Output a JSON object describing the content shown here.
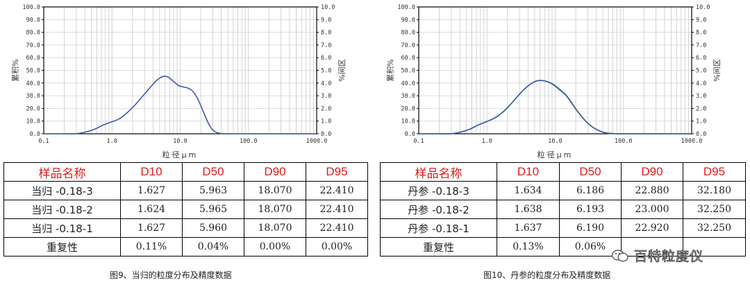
{
  "chart_data": [
    {
      "type": "line",
      "x_scale": "log",
      "xlim": [
        0.1,
        1000
      ],
      "ylim_left": [
        0,
        100
      ],
      "ylim_right": [
        0,
        10
      ],
      "grid": true,
      "xlabel": "粒径μm",
      "ylabel": "累积%",
      "ylabel_right": "%间区",
      "x_ticks": [
        "0.1",
        "1.0",
        "10.0",
        "100.0",
        "1000.0"
      ],
      "y_ticks_left": [
        "0.0",
        "10.0",
        "20.0",
        "30.0",
        "40.0",
        "50.0",
        "60.0",
        "70.0",
        "80.0",
        "90.0",
        "100.0"
      ],
      "y_ticks_right": [
        "0.0",
        "1.0",
        "2.0",
        "3.0",
        "4.0",
        "5.0",
        "6.0",
        "7.0",
        "8.0",
        "9.0",
        "10.0"
      ],
      "series": [
        {
          "color": "#3c5aa8",
          "x": [
            0.1,
            0.2,
            0.3,
            0.4,
            0.55,
            0.75,
            1.0,
            1.3,
            1.7,
            2.2,
            2.8,
            3.5,
            4.3,
            5.2,
            6.0,
            6.8,
            7.5,
            8.5,
            9.5,
            11,
            13,
            15,
            17,
            19,
            22,
            26,
            30,
            35,
            40,
            45,
            60,
            100,
            1000
          ],
          "y": [
            0,
            0,
            0.1,
            1.3,
            3.5,
            7,
            9.5,
            12,
            17,
            23,
            29.5,
            35.5,
            41,
            44.5,
            45.3,
            44.5,
            42.5,
            40,
            38,
            37,
            36,
            34,
            30,
            25,
            17,
            8,
            3,
            0.8,
            0.2,
            0,
            0,
            0,
            0
          ]
        }
      ]
    },
    {
      "type": "line",
      "x_scale": "log",
      "xlim": [
        0.1,
        1000
      ],
      "ylim_left": [
        0,
        100
      ],
      "ylim_right": [
        0,
        10
      ],
      "grid": true,
      "xlabel": "粒径μm",
      "ylabel": "累积%",
      "ylabel_right": "%间区",
      "x_ticks": [
        "0.1",
        "1.0",
        "10.0",
        "100.0",
        "1000.0"
      ],
      "y_ticks_left": [
        "0.0",
        "10.0",
        "20.0",
        "30.0",
        "40.0",
        "50.0",
        "60.0",
        "70.0",
        "80.0",
        "90.0",
        "100.0"
      ],
      "y_ticks_right": [
        "0.0",
        "1.0",
        "2.0",
        "3.0",
        "4.0",
        "5.0",
        "6.0",
        "7.0",
        "8.0",
        "9.0",
        "10.0"
      ],
      "series": [
        {
          "color": "#3c5aa8",
          "x": [
            0.1,
            0.2,
            0.3,
            0.4,
            0.55,
            0.75,
            1.0,
            1.3,
            1.7,
            2.2,
            2.8,
            3.5,
            4.3,
            5.2,
            6.2,
            7.2,
            8.5,
            10,
            12,
            14.5,
            17,
            20,
            24,
            28,
            33,
            40,
            50,
            60,
            80,
            100,
            1000
          ],
          "y": [
            0,
            0,
            0.1,
            1.2,
            3.5,
            7,
            9.8,
            12.5,
            17,
            23,
            29.5,
            35,
            39,
            41.5,
            42,
            41.5,
            40,
            37.5,
            34,
            30,
            25,
            19.5,
            14,
            10,
            6.5,
            3.5,
            1.3,
            0.5,
            0,
            0,
            0
          ]
        },
        {
          "color": "#3aa04a",
          "x": [
            0.1,
            0.2,
            0.3,
            0.4,
            0.55,
            0.75,
            1.0,
            1.3,
            1.7,
            2.2,
            2.8,
            3.5,
            4.3,
            5.2,
            6.2,
            7.2,
            8.5,
            10,
            12,
            14.5,
            17,
            20,
            24,
            28,
            33,
            40,
            50,
            60,
            80,
            100,
            1000
          ],
          "y": [
            0,
            0,
            0.1,
            1.2,
            3.4,
            7,
            9.7,
            12.4,
            17,
            23,
            29.4,
            35,
            39,
            41.4,
            42,
            41.6,
            40.3,
            38,
            34.5,
            30.4,
            25.4,
            19.8,
            14.2,
            10,
            6.4,
            3.4,
            1.2,
            0.4,
            0,
            0,
            0
          ]
        }
      ]
    }
  ],
  "tables": [
    {
      "headers": [
        "样品名称",
        "D10",
        "D50",
        "D90",
        "D95"
      ],
      "rows": [
        [
          "当归 -0.18-3",
          "1.627",
          "5.963",
          "18.070",
          "22.410"
        ],
        [
          "当归 -0.18-2",
          "1.624",
          "5.965",
          "18.070",
          "22.410"
        ],
        [
          "当归 -0.18-1",
          "1.627",
          "5.960",
          "18.070",
          "22.410"
        ],
        [
          "重复性",
          "0.11%",
          "0.04%",
          "0.00%",
          "0.00%"
        ]
      ]
    },
    {
      "headers": [
        "样品名称",
        "D10",
        "D50",
        "D90",
        "D95"
      ],
      "rows": [
        [
          "丹参 -0.18-3",
          "1.634",
          "6.186",
          "22.880",
          "32.180"
        ],
        [
          "丹参 -0.18-2",
          "1.638",
          "6.193",
          "23.000",
          "32.250"
        ],
        [
          "丹参 -0.18-1",
          "1.637",
          "6.190",
          "22.920",
          "32.250"
        ],
        [
          "重复性",
          "0.13%",
          "0.06%",
          "",
          ""
        ]
      ]
    }
  ],
  "captions": [
    "图9、当归的粒度分布及精度数据",
    "图10、丹参的粒度分布及精度数据"
  ],
  "watermark": {
    "text": "百特粒度仪",
    "icon": "wechat-icon"
  }
}
